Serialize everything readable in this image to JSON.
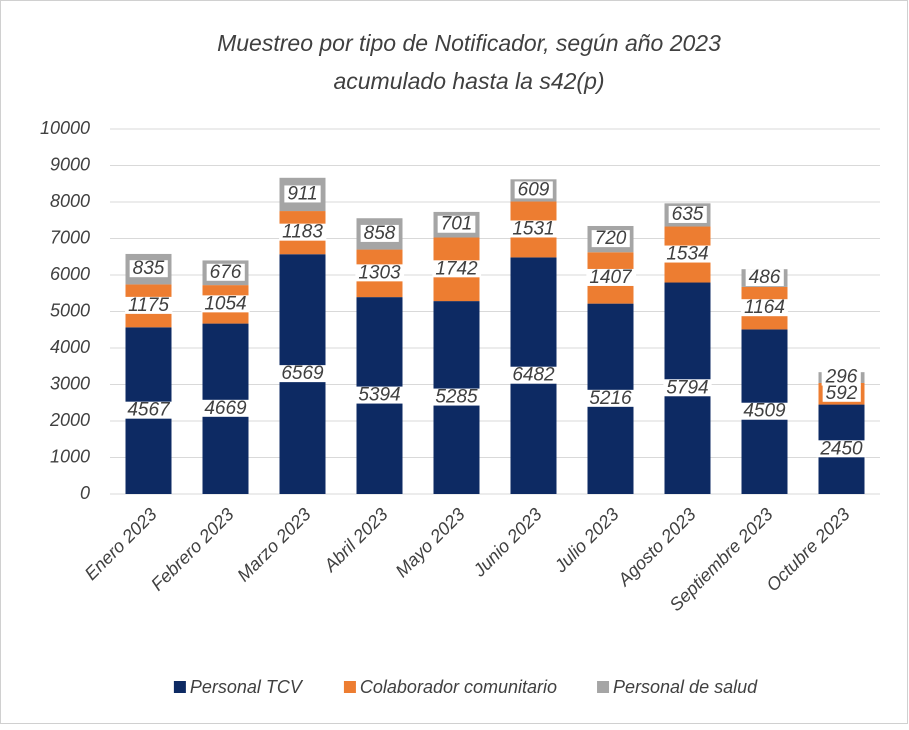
{
  "chart_data": {
    "type": "stacked_bar",
    "title": "Muestreo por tipo de Notificador, según año 2023",
    "subtitle": "acumulado hasta la s42(p)",
    "categories": [
      "Enero 2023",
      "Febrero 2023",
      "Marzo 2023",
      "Abril 2023",
      "Mayo 2023",
      "Junio 2023",
      "Julio 2023",
      "Agosto 2023",
      "Septiembre 2023",
      "Octubre 2023"
    ],
    "series": [
      {
        "name": "Personal TCV",
        "color": "#0d2a63",
        "values": [
          4567,
          4669,
          6569,
          5394,
          5285,
          6482,
          5216,
          5794,
          4509,
          2450
        ]
      },
      {
        "name": "Colaborador comunitario",
        "color": "#ed7d31",
        "values": [
          1175,
          1054,
          1183,
          1303,
          1742,
          1531,
          1407,
          1534,
          1164,
          592
        ]
      },
      {
        "name": "Personal de salud",
        "color": "#a5a5a5",
        "values": [
          835,
          676,
          911,
          858,
          701,
          609,
          720,
          635,
          486,
          296
        ]
      }
    ],
    "ylim": [
      0,
      10000
    ],
    "yticks": [
      0,
      1000,
      2000,
      3000,
      4000,
      5000,
      6000,
      7000,
      8000,
      9000,
      10000
    ],
    "grid": true,
    "legend": "bottom"
  }
}
